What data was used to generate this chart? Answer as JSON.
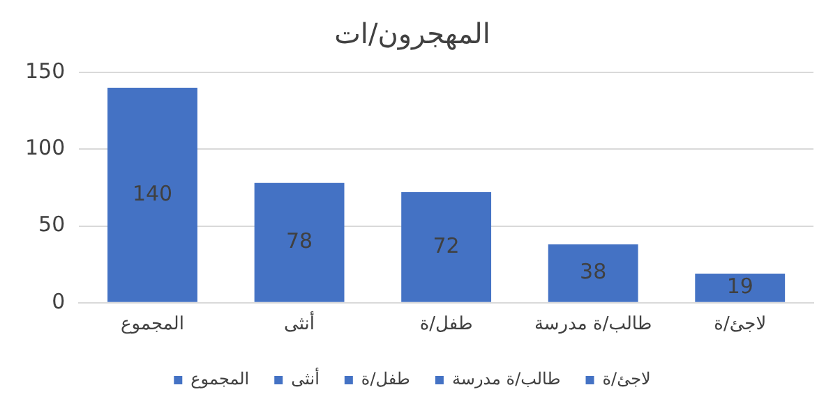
{
  "chart_data": {
    "type": "bar",
    "title": "المهجرون/ات",
    "categories": [
      "المجموع",
      "أنثى",
      "طفل/ة",
      "طالب/ة مدرسة",
      "لاجئ/ة"
    ],
    "series": [
      {
        "name": "المجموع",
        "color": "#4472c4",
        "values": [
          140,
          null,
          null,
          null,
          null
        ]
      },
      {
        "name": "أنثى",
        "color": "#4472c4",
        "values": [
          null,
          78,
          null,
          null,
          null
        ]
      },
      {
        "name": "طفل/ة",
        "color": "#4472c4",
        "values": [
          null,
          null,
          72,
          null,
          null
        ]
      },
      {
        "name": "طالب/ة مدرسة",
        "color": "#4472c4",
        "values": [
          null,
          null,
          null,
          38,
          null
        ]
      },
      {
        "name": "لاجئ/ة",
        "color": "#4472c4",
        "values": [
          null,
          null,
          null,
          null,
          19
        ]
      }
    ],
    "ylim": [
      0,
      150
    ],
    "yticks": [
      0,
      50,
      100,
      150
    ],
    "grid": "y",
    "legend": "bottom",
    "data_labels": true
  }
}
